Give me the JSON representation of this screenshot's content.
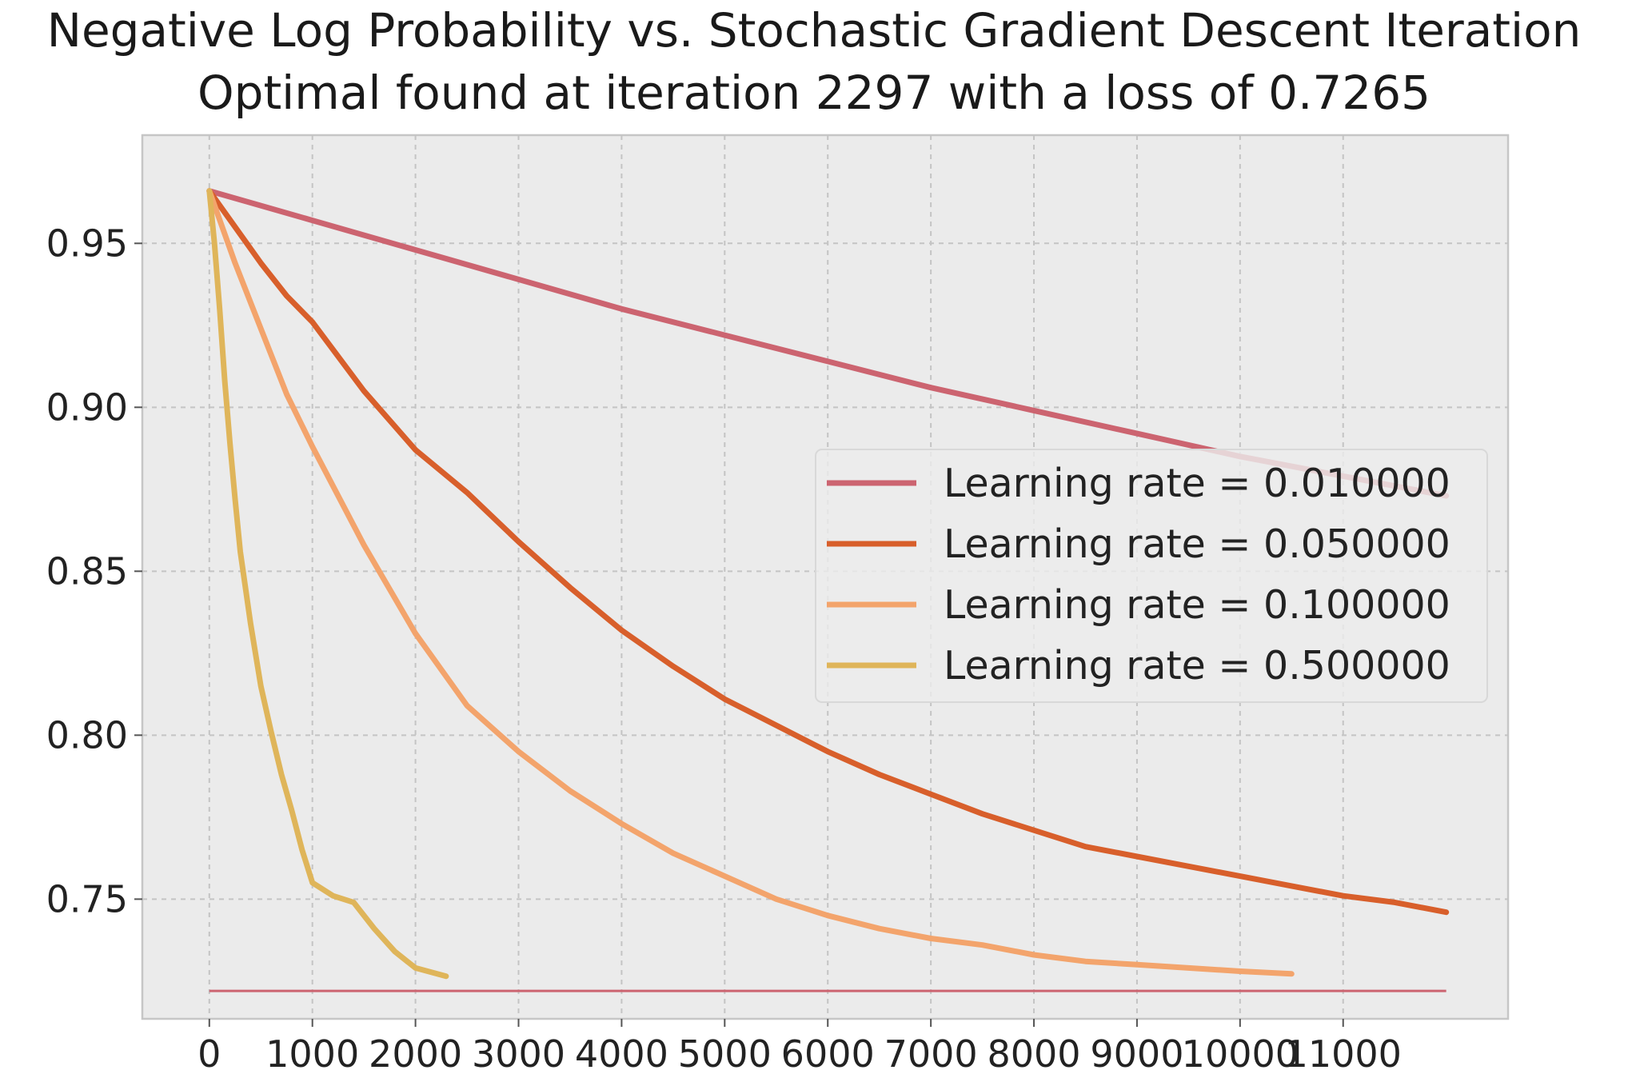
{
  "chart_data": {
    "type": "line",
    "title": "Negative Log Probability vs. Stochastic Gradient Descent Iteration",
    "subtitle": "Optimal found at iteration 2297 with a loss of 0.7265",
    "xlabel": "",
    "ylabel": "",
    "xlim": [
      -650,
      12600
    ],
    "ylim": [
      0.7135,
      0.983
    ],
    "x_ticks": [
      0,
      1000,
      2000,
      3000,
      4000,
      5000,
      6000,
      7000,
      8000,
      9000,
      10000,
      11000
    ],
    "x_tick_labels": [
      "0",
      "1000",
      "2000",
      "3000",
      "4000",
      "5000",
      "6000",
      "7000",
      "8000",
      "9000",
      "10000",
      "11000"
    ],
    "y_ticks": [
      0.75,
      0.8,
      0.85,
      0.9,
      0.95
    ],
    "y_tick_labels": [
      "0.75",
      "0.80",
      "0.85",
      "0.90",
      "0.95"
    ],
    "grid": true,
    "legend_position": "center-right",
    "plot_background": "#ebebeb",
    "series": [
      {
        "name": "Learning rate = 0.010000",
        "color": "#cc6470",
        "x": [
          0,
          1000,
          2000,
          3000,
          4000,
          5000,
          6000,
          7000,
          8000,
          9000,
          10000,
          11000,
          12000
        ],
        "y": [
          0.966,
          0.957,
          0.948,
          0.939,
          0.93,
          0.922,
          0.914,
          0.906,
          0.899,
          0.892,
          0.885,
          0.879,
          0.873
        ]
      },
      {
        "name": "Learning rate = 0.050000",
        "color": "#d85f2b",
        "x": [
          0,
          250,
          500,
          750,
          1000,
          1500,
          2000,
          2500,
          3000,
          3500,
          4000,
          4500,
          5000,
          5500,
          6000,
          6500,
          7000,
          7500,
          8000,
          8500,
          9000,
          9500,
          10000,
          10500,
          11000,
          11500,
          12000
        ],
        "y": [
          0.966,
          0.955,
          0.944,
          0.934,
          0.926,
          0.905,
          0.887,
          0.874,
          0.859,
          0.845,
          0.832,
          0.821,
          0.811,
          0.803,
          0.795,
          0.788,
          0.782,
          0.776,
          0.771,
          0.766,
          0.763,
          0.76,
          0.757,
          0.754,
          0.751,
          0.749,
          0.746
        ]
      },
      {
        "name": "Learning rate = 0.100000",
        "color": "#f3a46c",
        "x": [
          0,
          250,
          500,
          750,
          1000,
          1500,
          2000,
          2500,
          3000,
          3500,
          4000,
          4500,
          5000,
          5500,
          6000,
          6500,
          7000,
          7500,
          8000,
          8500,
          9000,
          9500,
          10000,
          10500
        ],
        "y": [
          0.966,
          0.944,
          0.924,
          0.904,
          0.888,
          0.858,
          0.831,
          0.809,
          0.795,
          0.783,
          0.773,
          0.764,
          0.757,
          0.75,
          0.745,
          0.741,
          0.738,
          0.736,
          0.733,
          0.731,
          0.73,
          0.729,
          0.728,
          0.7272
        ]
      },
      {
        "name": "Learning rate = 0.500000",
        "color": "#dfb55a",
        "x": [
          0,
          50,
          100,
          150,
          200,
          250,
          300,
          400,
          500,
          600,
          700,
          800,
          900,
          1000,
          1200,
          1400,
          1600,
          1800,
          2000,
          2297
        ],
        "y": [
          0.966,
          0.95,
          0.93,
          0.908,
          0.889,
          0.872,
          0.856,
          0.834,
          0.815,
          0.801,
          0.788,
          0.777,
          0.765,
          0.755,
          0.751,
          0.749,
          0.741,
          0.734,
          0.729,
          0.7265
        ]
      }
    ],
    "reference_line": {
      "y": 0.722,
      "x_from": 0,
      "x_to": 12000,
      "color": "#cc6470"
    }
  }
}
